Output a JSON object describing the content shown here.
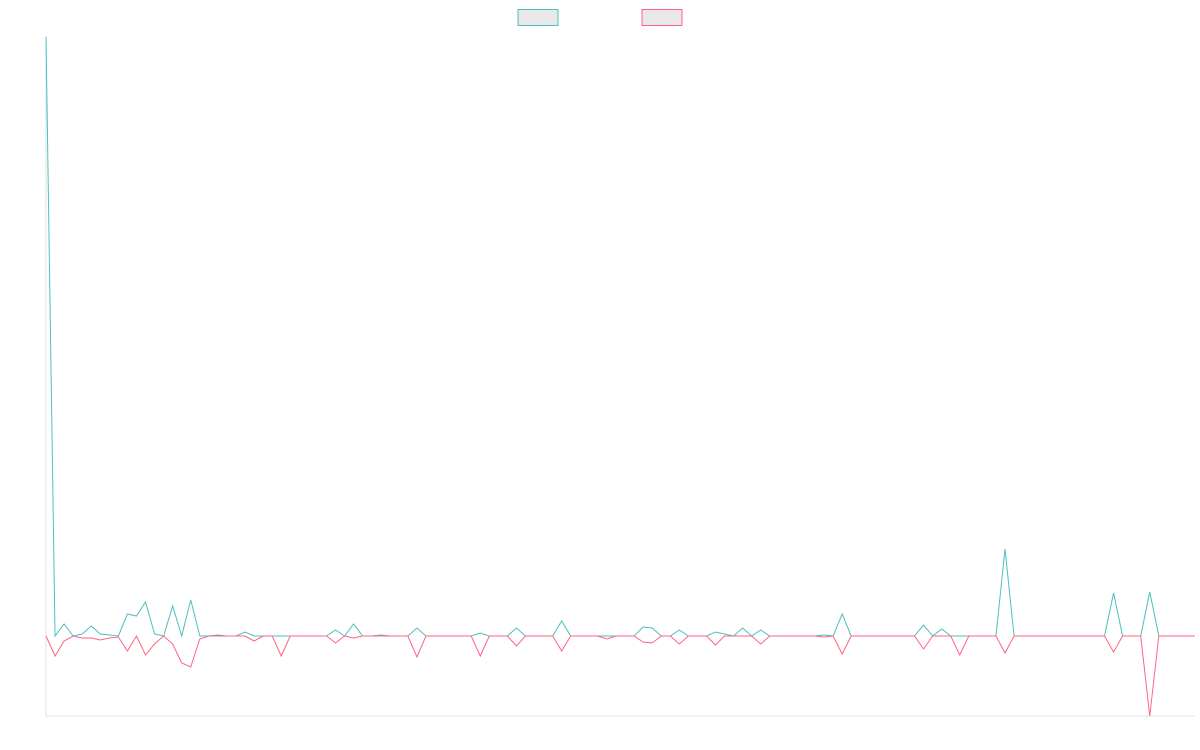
{
  "chart_data": {
    "type": "line",
    "ylim": [
      -80,
      600
    ],
    "series": [
      {
        "color": "#4bc0c0",
        "values": [
          599,
          0,
          12,
          0,
          2,
          10,
          2,
          1,
          0,
          22,
          20,
          34,
          2,
          0,
          30,
          0,
          36,
          0,
          0,
          1,
          0,
          0,
          4,
          0,
          0,
          0,
          0,
          0,
          0,
          0,
          0,
          0,
          6,
          0,
          12,
          0,
          0,
          1,
          0,
          0,
          0,
          8,
          0,
          0,
          0,
          0,
          0,
          0,
          3,
          0,
          0,
          0,
          8,
          0,
          0,
          0,
          0,
          15,
          0,
          0,
          0,
          0,
          0,
          0,
          0,
          0,
          9,
          8,
          0,
          0,
          6,
          0,
          0,
          0,
          4,
          2,
          0,
          8,
          0,
          6,
          0,
          0,
          0,
          0,
          0,
          0,
          1,
          0,
          22,
          0,
          0,
          0,
          0,
          0,
          0,
          0,
          0,
          11,
          0,
          7,
          0,
          0,
          0,
          0,
          0,
          0,
          87,
          0,
          0,
          0,
          0,
          0,
          0,
          0,
          0,
          0,
          0,
          0,
          43,
          0,
          0,
          0,
          44,
          0,
          0,
          0,
          0,
          0
        ]
      },
      {
        "color": "#ff6384",
        "values": [
          0,
          -20,
          -5,
          0,
          -2,
          -2,
          -4,
          -2,
          -1,
          -15,
          0,
          -19,
          -8,
          0,
          -8,
          -27,
          -31,
          -3,
          0,
          0,
          0,
          0,
          0,
          -5,
          0,
          0,
          -20,
          0,
          0,
          0,
          0,
          0,
          -7,
          0,
          -2,
          0,
          0,
          0,
          0,
          0,
          0,
          -21,
          0,
          0,
          0,
          0,
          0,
          0,
          -20,
          0,
          0,
          0,
          -10,
          0,
          0,
          0,
          0,
          -15,
          0,
          0,
          0,
          0,
          -3,
          0,
          0,
          0,
          -6,
          -7,
          0,
          0,
          -8,
          0,
          0,
          0,
          -9,
          0,
          0,
          0,
          0,
          -8,
          0,
          0,
          0,
          0,
          0,
          0,
          -1,
          0,
          -18,
          0,
          0,
          0,
          0,
          0,
          0,
          0,
          0,
          -13,
          0,
          0,
          0,
          -19,
          0,
          0,
          0,
          0,
          -17,
          0,
          0,
          0,
          0,
          0,
          0,
          0,
          0,
          0,
          0,
          0,
          -16,
          0,
          0,
          0,
          -80,
          0,
          0,
          0,
          0,
          0
        ]
      }
    ]
  }
}
